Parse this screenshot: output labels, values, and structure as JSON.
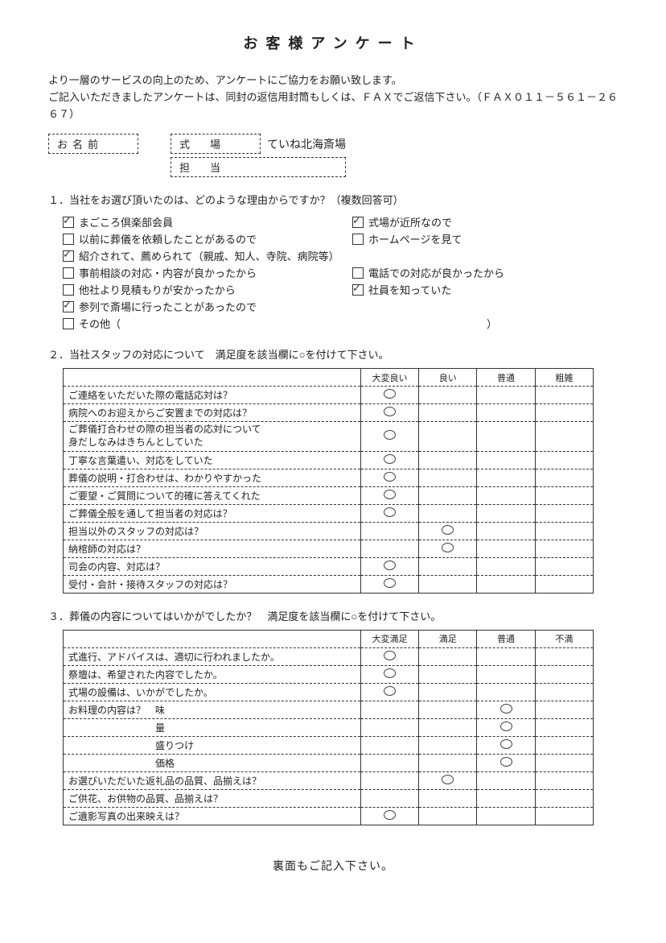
{
  "title": "お客様アンケート",
  "intro": [
    "より一層のサービスの向上のため、アンケートにご協力をお願い致します。",
    "ご記入いただきましたアンケートは、同封の返信用封筒もしくは、ＦＡＸでご返信下さい。（ＦＡＸ０１１－５６１－２６６７）"
  ],
  "info": {
    "name_label": "お名前",
    "venue_label": "式　場",
    "venue_value": "ていね北海斎場",
    "staff_label": "担　当"
  },
  "q1": {
    "heading": "１．当社をお選び頂いたのは、どのような理由からですか？（複数回答可）",
    "rows": [
      [
        {
          "label": "まごころ倶楽部会員",
          "checked": true
        },
        {
          "label": "式場が近所なので",
          "checked": true
        }
      ],
      [
        {
          "label": "以前に葬儀を依頼したことがあるので",
          "checked": false
        },
        {
          "label": "ホームページを見て",
          "checked": false
        }
      ],
      [
        {
          "label": "紹介されて、薦められて（親戚、知人、寺院、病院等）",
          "checked": true
        }
      ],
      [
        {
          "label": "事前相談の対応・内容が良かったから",
          "checked": false
        },
        {
          "label": "電話での対応が良かったから",
          "checked": false
        }
      ],
      [
        {
          "label": "他社より見積もりが安かったから",
          "checked": false
        },
        {
          "label": "社員を知っていた",
          "checked": true
        }
      ],
      [
        {
          "label": "参列で斎場に行ったことがあったので",
          "checked": true
        }
      ]
    ],
    "other_label": "その他（",
    "other_close": "）"
  },
  "q2": {
    "heading": "２．当社スタッフの対応について　満足度を該当欄に○を付けて下さい。",
    "columns": [
      "",
      "大変良い",
      "良い",
      "普通",
      "粗雑"
    ],
    "rows": [
      {
        "label": "ご連絡をいただいた際の電話応対は？",
        "mark": 0
      },
      {
        "label": "病院へのお迎えからご安置までの対応は？",
        "mark": 0
      },
      {
        "label": "ご葬儀打合わせの際の担当者の応対について\n身だしなみはきちんとしていた",
        "mark": 0
      },
      {
        "label": "丁寧な言葉遣い、対応をしていた",
        "mark": 0
      },
      {
        "label": "葬儀の説明・打合わせは、わかりやすかった",
        "mark": 0
      },
      {
        "label": "ご要望・ご質問について的確に答えてくれた",
        "mark": 0
      },
      {
        "label": "ご葬儀全般を通して担当者の対応は？",
        "mark": 0
      },
      {
        "label": "担当以外のスタッフの対応は？",
        "mark": 1
      },
      {
        "label": "納棺師の対応は？",
        "mark": 1
      },
      {
        "label": "司会の内容、対応は？",
        "mark": 0
      },
      {
        "label": "受付・会計・接待スタッフの対応は？",
        "mark": 0
      }
    ]
  },
  "q3": {
    "heading": "３．葬儀の内容についてはいかがでしたか？　満足度を該当欄に○を付けて下さい。",
    "columns": [
      "",
      "大変満足",
      "満足",
      "普通",
      "不満"
    ],
    "rows": [
      {
        "label": "式進行、アドバイスは、適切に行われましたか。",
        "mark": 0
      },
      {
        "label": "祭壇は、希望された内容でしたか。",
        "mark": 0
      },
      {
        "label": "式場の設備は、いかがでしたか。",
        "mark": 0
      },
      {
        "label": "お料理の内容は？　味",
        "mark": 2
      },
      {
        "label": "　　　　　　　　　量",
        "mark": 2
      },
      {
        "label": "　　　　　　　　　盛りつけ",
        "mark": 2
      },
      {
        "label": "　　　　　　　　　価格",
        "mark": 2
      },
      {
        "label": "お選びいただいた返礼品の品質、品揃えは？",
        "mark": 1
      },
      {
        "label": "ご供花、お供物の品質、品揃えは？",
        "mark": null
      },
      {
        "label": "ご遺影写真の出来映えは？",
        "mark": 0
      }
    ]
  },
  "footer": "裏面もご記入下さい。"
}
